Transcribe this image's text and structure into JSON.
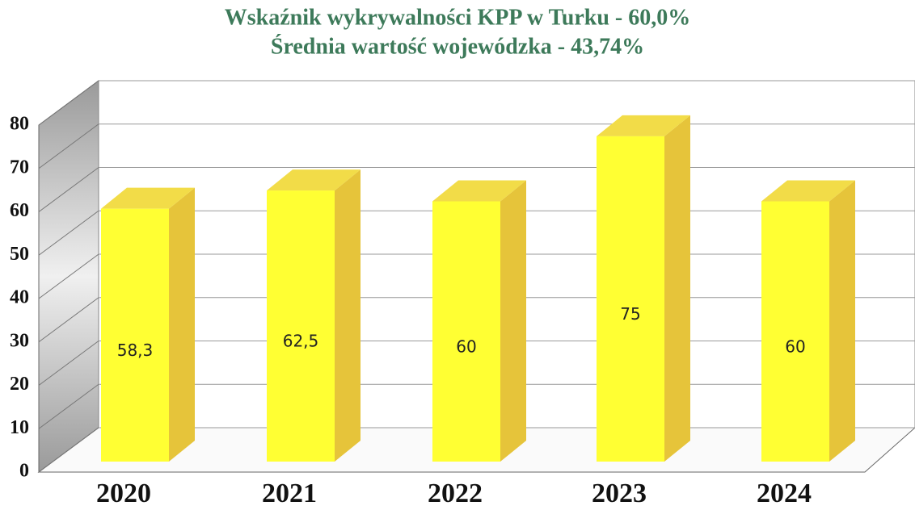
{
  "chart_data": {
    "type": "bar3d",
    "title": "Wskaźnik wykrywalności KPP w Turku - 60,0%",
    "subtitle": "Średnia wartość wojewódzka - 43,74%",
    "categories": [
      "2020",
      "2021",
      "2022",
      "2023",
      "2024"
    ],
    "values": [
      58.3,
      62.5,
      60,
      75,
      60
    ],
    "value_labels": [
      "58,3",
      "62,5",
      "60",
      "75",
      "60"
    ],
    "color": "#ffff33",
    "ylim": [
      0,
      80
    ],
    "yticks": [
      0,
      10,
      20,
      30,
      40,
      50,
      60,
      70,
      80
    ],
    "grid": true
  }
}
